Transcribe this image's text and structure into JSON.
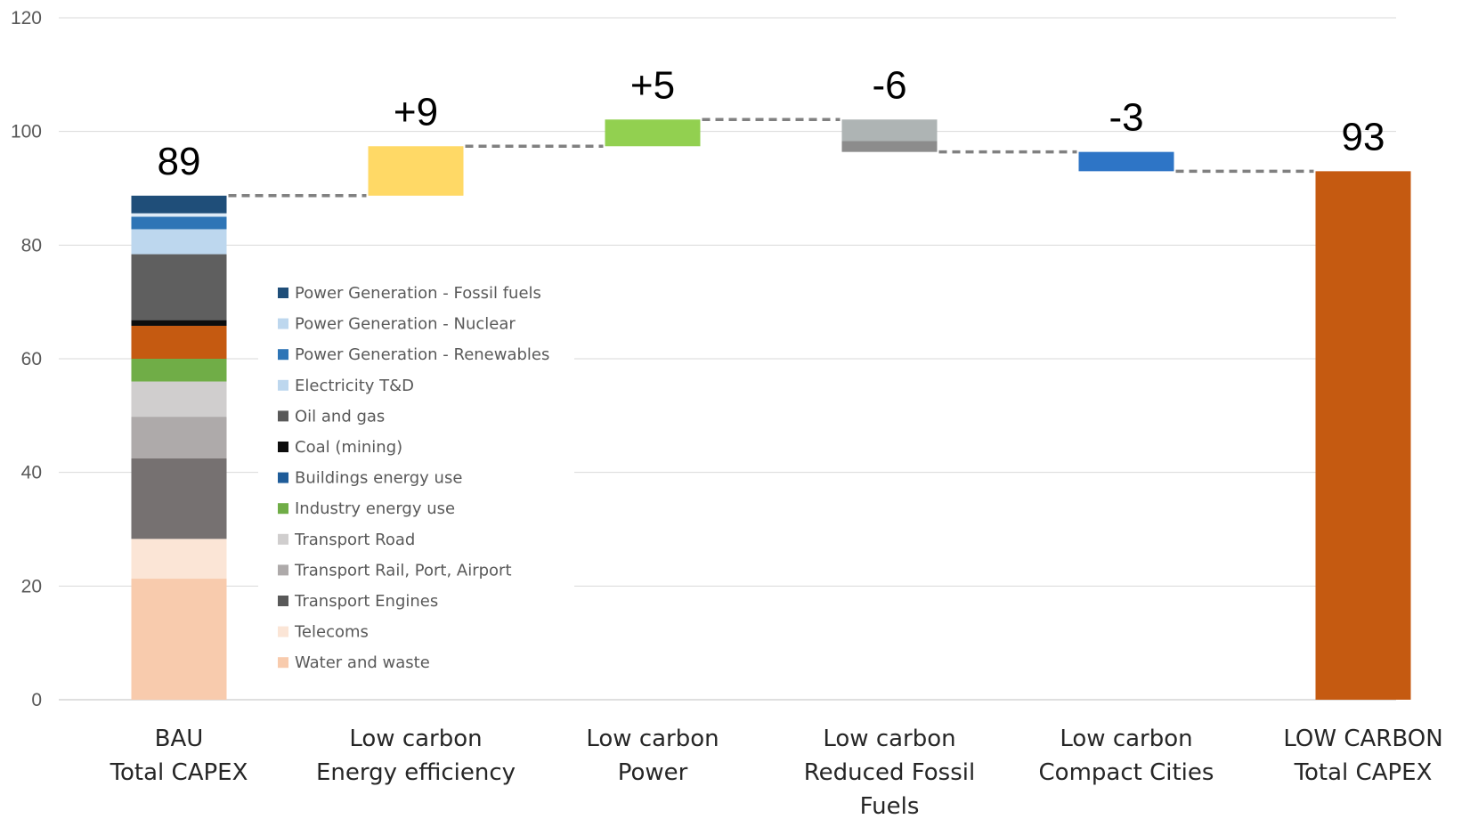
{
  "chart_data": {
    "type": "bar",
    "subtype": "waterfall",
    "ylim": [
      0,
      120
    ],
    "yticks": [
      0,
      20,
      40,
      60,
      80,
      100,
      120
    ],
    "grid": true,
    "legend_position": "inside-left",
    "categories": [
      [
        "BAU",
        "Total CAPEX"
      ],
      [
        "Low carbon",
        "Energy efficiency"
      ],
      [
        "Low carbon",
        "Power"
      ],
      [
        "Low carbon",
        "Reduced Fossil",
        "Fuels"
      ],
      [
        "Low carbon",
        "Compact Cities"
      ],
      [
        "LOW CARBON",
        "Total CAPEX"
      ]
    ],
    "data_labels": [
      "89",
      "+9",
      "+5",
      "-6",
      "-3",
      "93"
    ],
    "bau_stack": [
      {
        "name": "Water and waste",
        "value": 21.3,
        "color": "#F8CBAD"
      },
      {
        "name": "Telecoms",
        "value": 7.0,
        "color": "#FBE5D6"
      },
      {
        "name": "Transport Engines",
        "value": 14.2,
        "color": "#767171"
      },
      {
        "name": "Transport Rail, Port, Airport",
        "value": 7.3,
        "color": "#AEAAAA"
      },
      {
        "name": "Transport Road",
        "value": 6.2,
        "color": "#D0CECE"
      },
      {
        "name": "Industry energy use",
        "value": 4.0,
        "color": "#70AD47"
      },
      {
        "name": "Buildings energy use",
        "value": 5.8,
        "color": "#C55A11"
      },
      {
        "name": "Coal (mining)",
        "value": 1.0,
        "color": "#0D0D0D"
      },
      {
        "name": "Oil and gas",
        "value": 11.6,
        "color": "#5F5F5F"
      },
      {
        "name": "Electricity T&D",
        "value": 4.4,
        "color": "#BDD7EE"
      },
      {
        "name": "Power Generation - Renewables",
        "value": 2.2,
        "color": "#2E75B6"
      },
      {
        "name": "Power Generation - Nuclear",
        "value": 0.6,
        "color": "#DEEBF7"
      },
      {
        "name": "Power Generation - Fossil fuels",
        "value": 3.1,
        "color": "#1F4E79"
      }
    ],
    "steps": [
      {
        "segments": [
          {
            "from": 88.7,
            "to": 97.4,
            "color": "#FFD966"
          }
        ]
      },
      {
        "segments": [
          {
            "from": 97.4,
            "to": 102.1,
            "color": "#92D050"
          }
        ]
      },
      {
        "segments": [
          {
            "from": 98.3,
            "to": 102.1,
            "color": "#AEB4B4"
          },
          {
            "from": 96.4,
            "to": 98.3,
            "color": "#8C8C8C"
          }
        ]
      },
      {
        "segments": [
          {
            "from": 93.0,
            "to": 96.4,
            "color": "#2E75C6"
          }
        ]
      }
    ],
    "total": {
      "value": 93,
      "color": "#C55A11"
    },
    "connectors": [
      88.7,
      97.4,
      102.1,
      96.4,
      93.0
    ],
    "legend": [
      {
        "name": "Power Generation - Fossil fuels",
        "color": "#1F4E79"
      },
      {
        "name": "Power Generation - Nuclear",
        "color": "#BDD7EE"
      },
      {
        "name": "Power Generation - Renewables",
        "color": "#2E75B6"
      },
      {
        "name": "Electricity T&D",
        "color": "#BDD7EE"
      },
      {
        "name": "Oil and gas",
        "color": "#595959"
      },
      {
        "name": "Coal (mining)",
        "color": "#0D0D0D"
      },
      {
        "name": "Buildings energy use",
        "color": "#1F5C99"
      },
      {
        "name": "Industry energy use",
        "color": "#70AD47"
      },
      {
        "name": "Transport Road",
        "color": "#D0CECE"
      },
      {
        "name": "Transport Rail, Port, Airport",
        "color": "#AEAAAA"
      },
      {
        "name": "Transport Engines",
        "color": "#595959"
      },
      {
        "name": "Telecoms",
        "color": "#FBE5D6"
      },
      {
        "name": "Water and waste",
        "color": "#F8CBAD"
      }
    ]
  }
}
